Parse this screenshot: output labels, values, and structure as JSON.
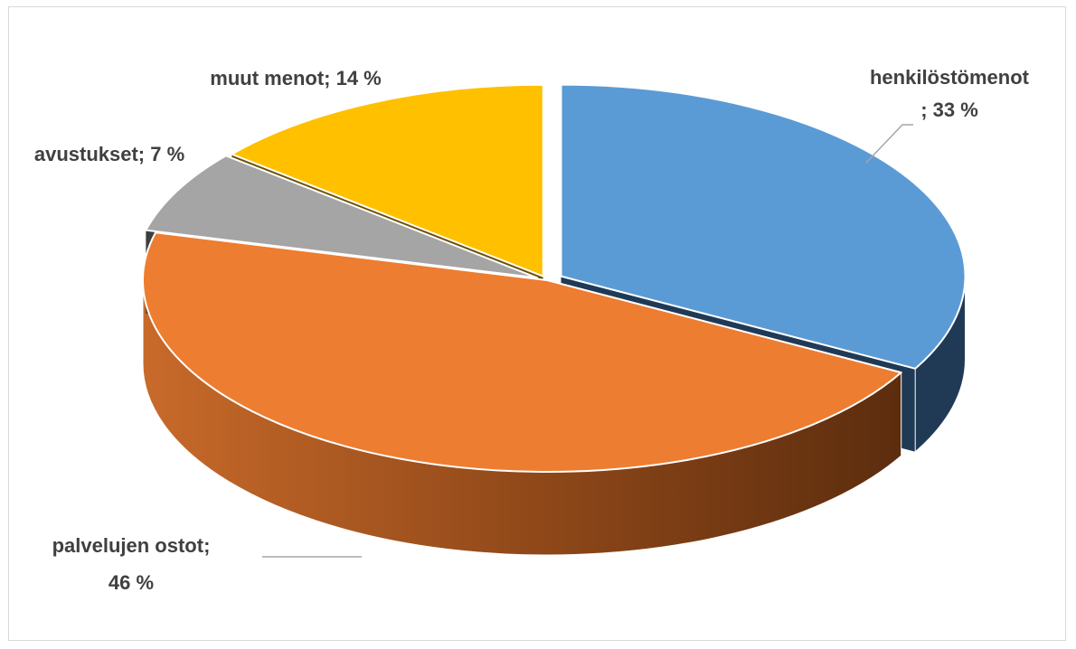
{
  "chart_data": {
    "type": "pie",
    "style": "3d-exploded",
    "slices": [
      {
        "label": "henkilöstömenot",
        "value": 33,
        "display": "33 %",
        "color": "#5b9bd5",
        "side_color": "#203a56",
        "label_lines": [
          "henkilöstömenot",
          "; 33 %"
        ]
      },
      {
        "label": "palvelujen ostot",
        "value": 46,
        "display": "46 %",
        "color": "#ed7d31",
        "side_color": "#a65117",
        "label_lines": [
          "palvelujen ostot;",
          "46 %"
        ]
      },
      {
        "label": "avustukset",
        "value": 7,
        "display": "7 %",
        "color": "#a5a5a5",
        "side_color": "#3e3e3e",
        "label_lines": [
          "avustukset; 7 %"
        ]
      },
      {
        "label": "muut menot",
        "value": 14,
        "display": "14 %",
        "color": "#ffc000",
        "side_color": "#6b5000",
        "label_lines": [
          "muut menot; 14 %"
        ]
      }
    ],
    "title": "",
    "legend": "none",
    "leader_line_color": "#a6a6a6"
  }
}
